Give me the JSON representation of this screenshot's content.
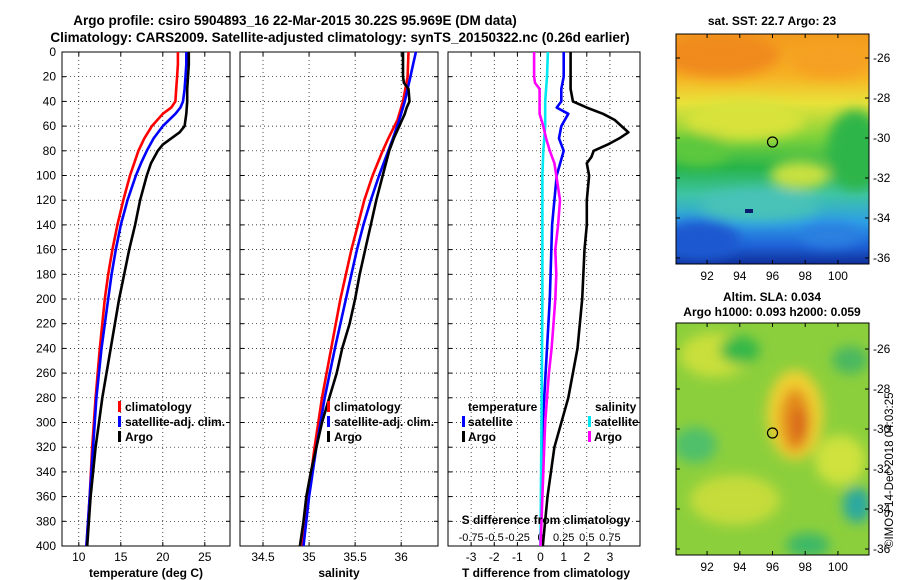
{
  "title": {
    "line1": "Argo profile: csiro 5904893_16 22-Mar-2015 30.22S 95.969E (DM data)",
    "line2": "Climatology: CARS2009. Satellite-adjusted climatology: synTS_20150322.nc (0.26d earlier)"
  },
  "colors": {
    "climatology": "#ff0000",
    "satellite": "#0000ff",
    "argo": "#000000",
    "sal_satellite": "#00e8f0",
    "sal_argo": "#ff00ff"
  },
  "depth_axis": {
    "ylim": [
      0,
      400
    ],
    "ticks": [
      "0",
      "20",
      "40",
      "60",
      "80",
      "100",
      "120",
      "140",
      "160",
      "180",
      "200",
      "220",
      "240",
      "260",
      "280",
      "300",
      "320",
      "340",
      "360",
      "380",
      "400"
    ]
  },
  "chart_data": [
    {
      "name": "temperature-profile",
      "type": "line",
      "xlabel": "temperature (deg C)",
      "xlim": [
        8,
        28
      ],
      "xticks": [
        "10",
        "15",
        "20",
        "25"
      ],
      "legend": {
        "position": "lower-right",
        "entries": [
          "climatology",
          "satellite-adj. clim.",
          "Argo"
        ]
      },
      "series": [
        {
          "name": "climatology",
          "color": "#ff0000",
          "depth": [
            0,
            10,
            20,
            30,
            40,
            45,
            50,
            60,
            70,
            80,
            90,
            100,
            120,
            140,
            160,
            180,
            200,
            240,
            280,
            320,
            360,
            400
          ],
          "values": [
            21.8,
            21.8,
            21.7,
            21.6,
            21.5,
            21.0,
            20.0,
            18.7,
            17.8,
            17.1,
            16.6,
            16.1,
            15.3,
            14.6,
            14.0,
            13.5,
            13.1,
            12.5,
            12.0,
            11.6,
            11.3,
            10.9
          ]
        },
        {
          "name": "satellite-adj. clim.",
          "color": "#0000ff",
          "depth": [
            0,
            10,
            20,
            30,
            40,
            45,
            50,
            60,
            70,
            80,
            90,
            100,
            120,
            140,
            160,
            180,
            200,
            240,
            280,
            320,
            360,
            400
          ],
          "values": [
            22.8,
            22.8,
            22.7,
            22.6,
            22.4,
            22.1,
            21.5,
            20.0,
            18.9,
            18.1,
            17.4,
            16.8,
            15.8,
            15.0,
            14.4,
            13.9,
            13.5,
            12.7,
            12.1,
            11.7,
            11.3,
            10.9
          ]
        },
        {
          "name": "Argo",
          "color": "#000000",
          "depth": [
            0,
            10,
            20,
            30,
            40,
            50,
            60,
            65,
            70,
            75,
            80,
            85,
            90,
            100,
            120,
            140,
            160,
            180,
            200,
            220,
            240,
            260,
            280,
            300,
            320,
            360,
            400
          ],
          "values": [
            23.1,
            23.1,
            23.0,
            22.9,
            22.9,
            22.8,
            22.6,
            22.0,
            21.0,
            20.0,
            19.4,
            19.0,
            18.6,
            18.1,
            17.3,
            16.7,
            16.0,
            15.4,
            14.8,
            14.3,
            13.8,
            13.3,
            12.8,
            12.4,
            12.0,
            11.4,
            11.0
          ]
        }
      ]
    },
    {
      "name": "salinity-profile",
      "type": "line",
      "xlabel": "salinity",
      "xlim": [
        34.25,
        36.4
      ],
      "xticks": [
        "34.5",
        "35",
        "35.5",
        "36"
      ],
      "legend": {
        "position": "lower-left",
        "entries": [
          "climatology",
          "satellite-adj. clim.",
          "Argo"
        ]
      },
      "series": [
        {
          "name": "climatology",
          "color": "#ff0000",
          "depth": [
            0,
            20,
            40,
            55,
            70,
            80,
            100,
            120,
            140,
            160,
            180,
            200,
            240,
            280,
            320,
            360,
            400
          ],
          "values": [
            36.08,
            36.07,
            36.02,
            35.96,
            35.86,
            35.8,
            35.69,
            35.6,
            35.53,
            35.46,
            35.4,
            35.34,
            35.24,
            35.14,
            35.06,
            34.99,
            34.93
          ]
        },
        {
          "name": "satellite-adj. clim.",
          "color": "#0000ff",
          "depth": [
            0,
            10,
            20,
            40,
            55,
            70,
            80,
            100,
            120,
            140,
            160,
            180,
            200,
            240,
            280,
            320,
            360,
            400
          ],
          "values": [
            36.16,
            36.13,
            36.1,
            36.04,
            35.98,
            35.91,
            35.86,
            35.76,
            35.67,
            35.59,
            35.52,
            35.46,
            35.4,
            35.28,
            35.17,
            35.08,
            35.0,
            34.94
          ]
        },
        {
          "name": "Argo",
          "color": "#000000",
          "depth": [
            0,
            20,
            25,
            30,
            40,
            45,
            50,
            60,
            70,
            80,
            100,
            120,
            140,
            160,
            180,
            200,
            220,
            240,
            260,
            280,
            300,
            320,
            340,
            360,
            380,
            400
          ],
          "values": [
            36.02,
            36.02,
            36.03,
            36.08,
            36.09,
            36.06,
            36.04,
            35.98,
            35.92,
            35.87,
            35.8,
            35.73,
            35.67,
            35.61,
            35.55,
            35.5,
            35.44,
            35.36,
            35.3,
            35.22,
            35.14,
            35.08,
            35.02,
            34.97,
            34.94,
            34.9
          ]
        }
      ]
    },
    {
      "name": "difference-profile",
      "type": "line",
      "xlabel": "T difference from climatology",
      "xlim": [
        -4,
        4.3
      ],
      "xticks": [
        "-3",
        "-2",
        "-1",
        "0",
        "1",
        "2",
        "3"
      ],
      "secondary_axis": {
        "label": "S difference from climatology",
        "ticks": [
          "-0.75",
          "-0.5",
          "-0.25",
          "0",
          "0.25",
          "0.5",
          "0.75"
        ],
        "tick_values": [
          -0.75,
          -0.5,
          -0.25,
          0,
          0.25,
          0.5,
          0.75
        ]
      },
      "legend": {
        "temperature_title": "temperature",
        "salinity_title": "salinity",
        "temperature_entries": [
          "satellite",
          "Argo"
        ],
        "salinity_entries": [
          "satellite",
          "Argo"
        ]
      },
      "series": [
        {
          "name": "temperature satellite",
          "color": "#0000ff",
          "units": "degC",
          "depth": [
            0,
            20,
            30,
            40,
            45,
            50,
            60,
            70,
            80,
            100,
            140,
            200,
            300,
            400
          ],
          "values": [
            1.0,
            1.0,
            0.9,
            0.9,
            0.7,
            1.2,
            0.9,
            0.8,
            1.0,
            0.7,
            0.5,
            0.4,
            0.1,
            0.0
          ]
        },
        {
          "name": "temperature Argo",
          "color": "#000000",
          "units": "degC",
          "depth": [
            0,
            20,
            30,
            40,
            45,
            50,
            55,
            60,
            65,
            70,
            75,
            80,
            85,
            90,
            100,
            120,
            140,
            160,
            200,
            240,
            280,
            320,
            360,
            400
          ],
          "values": [
            1.3,
            1.3,
            1.3,
            1.4,
            2.0,
            2.7,
            3.2,
            3.5,
            3.8,
            3.4,
            2.9,
            2.3,
            2.2,
            2.0,
            2.1,
            2.0,
            2.0,
            1.9,
            1.8,
            1.6,
            1.2,
            0.6,
            0.3,
            0.1
          ]
        },
        {
          "name": "salinity satellite",
          "color": "#00e8f0",
          "units": "psu",
          "depth": [
            0,
            20,
            40,
            60,
            80,
            100,
            200,
            300,
            400
          ],
          "values": [
            0.08,
            0.07,
            0.05,
            0.05,
            0.03,
            0.02,
            0.02,
            0.01,
            0.0
          ]
        },
        {
          "name": "salinity Argo",
          "color": "#ff00ff",
          "units": "psu",
          "depth": [
            0,
            10,
            20,
            25,
            30,
            40,
            50,
            60,
            70,
            80,
            90,
            100,
            120,
            140,
            160,
            180,
            200,
            220,
            240,
            260,
            280,
            300,
            320,
            340,
            360,
            380,
            400
          ],
          "values": [
            -0.07,
            -0.07,
            -0.07,
            -0.06,
            -0.01,
            -0.01,
            -0.01,
            0.03,
            0.06,
            0.1,
            0.15,
            0.17,
            0.21,
            0.19,
            0.16,
            0.17,
            0.16,
            0.14,
            0.12,
            0.09,
            0.07,
            0.05,
            0.04,
            0.03,
            0.02,
            0.01,
            0.0
          ]
        }
      ]
    }
  ],
  "maps": [
    {
      "name": "sst-map",
      "title": "sat. SST: 22.7 Argo: 23",
      "lat_ticks": [
        "-26",
        "-28",
        "-30",
        "-32",
        "-34",
        "-36"
      ],
      "lat_values": [
        -26,
        -28,
        -30,
        -32,
        -34,
        -36
      ],
      "lon_ticks": [
        "92",
        "94",
        "96",
        "98",
        "100"
      ],
      "lon_values": [
        92,
        94,
        96,
        98,
        100
      ],
      "lon_range": [
        90.1,
        101.9
      ],
      "lat_range": [
        -36.3,
        -24.8
      ],
      "marker": {
        "lon": 96.0,
        "lat": -30.2
      }
    },
    {
      "name": "sla-map",
      "title": "Altim. SLA: 0.034",
      "subtitle": "Argo h1000: 0.093 h2000: 0.059",
      "lat_ticks": [
        "-26",
        "-28",
        "-30",
        "-32",
        "-34",
        "-36"
      ],
      "lat_values": [
        -26,
        -28,
        -30,
        -32,
        -34,
        -36
      ],
      "lon_ticks": [
        "92",
        "94",
        "96",
        "98",
        "100"
      ],
      "lon_values": [
        92,
        94,
        96,
        98,
        100
      ],
      "lon_range": [
        90.1,
        101.9
      ],
      "lat_range": [
        -36.3,
        -24.7
      ],
      "marker": {
        "lon": 96.0,
        "lat": -30.2
      }
    }
  ],
  "credit": "©IMOS 14-Dec-2018 04:03:25"
}
